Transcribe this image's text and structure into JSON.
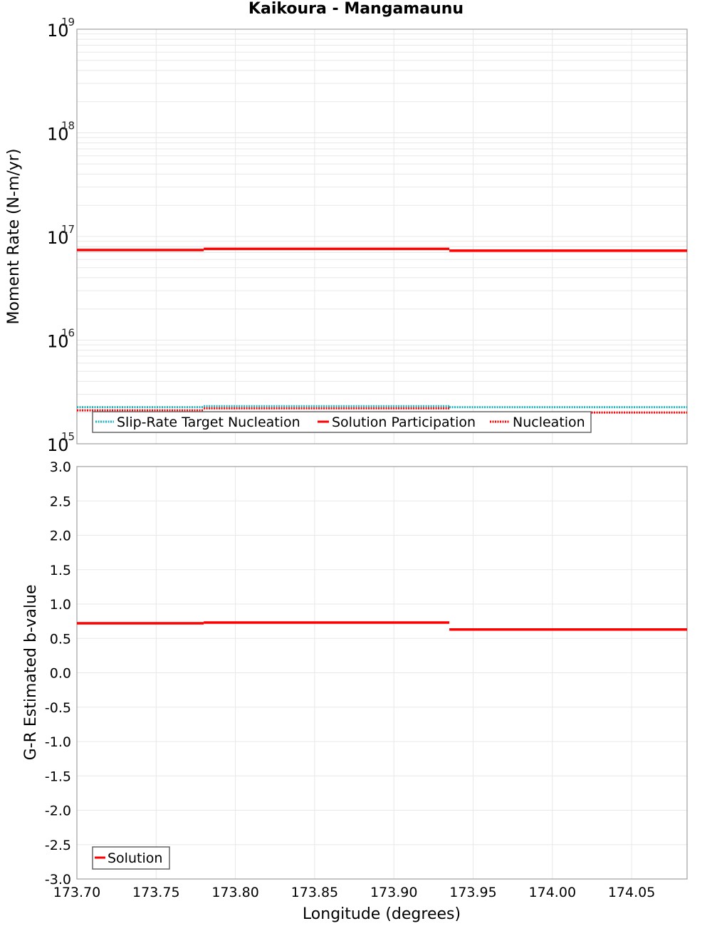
{
  "title": "Kaikoura - Mangamaunu",
  "colors": {
    "solution": "#ff0000",
    "target": "#1fb5c0",
    "nucleation": "#ff0000",
    "grid": "#e8e8e8",
    "frame": "#a0a0a0"
  },
  "chart_data": [
    {
      "type": "line",
      "title": "Kaikoura - Mangamaunu",
      "xlabel": "Longitude (degrees)",
      "ylabel": "Moment Rate (N-m/yr)",
      "yscale": "log",
      "ylim": [
        1000000000000000.0,
        1e+19
      ],
      "xlim": [
        173.7,
        174.085
      ],
      "ytick_labels": [
        "10^15",
        "10^16",
        "10^17",
        "10^18",
        "10^19"
      ],
      "grid": true,
      "legend_position": "lower left",
      "series": [
        {
          "name": "Slip-Rate Target Nucleation",
          "style": "dotted",
          "color": "#1fb5c0",
          "segments": [
            {
              "x": [
                173.7,
                173.78
              ],
              "y": 2200000000000000.0
            },
            {
              "x": [
                173.78,
                173.935
              ],
              "y": 2250000000000000.0
            },
            {
              "x": [
                173.935,
                174.085
              ],
              "y": 2200000000000000.0
            }
          ]
        },
        {
          "name": "Solution Participation",
          "style": "solid",
          "color": "#ff0000",
          "segments": [
            {
              "x": [
                173.7,
                173.78
              ],
              "y": 7.4e+16
            },
            {
              "x": [
                173.78,
                173.935
              ],
              "y": 7.6e+16
            },
            {
              "x": [
                173.935,
                174.085
              ],
              "y": 7.3e+16
            }
          ]
        },
        {
          "name": "Nucleation",
          "style": "dotted",
          "color": "#ff0000",
          "segments": [
            {
              "x": [
                173.7,
                173.78
              ],
              "y": 2150000000000000.0
            },
            {
              "x": [
                173.78,
                173.935
              ],
              "y": 2250000000000000.0
            },
            {
              "x": [
                173.935,
                174.085
              ],
              "y": 2050000000000000.0
            }
          ]
        }
      ]
    },
    {
      "type": "line",
      "xlabel": "Longitude (degrees)",
      "ylabel": "G-R Estimated b-value",
      "ylim": [
        -3.0,
        3.0
      ],
      "xlim": [
        173.7,
        174.085
      ],
      "ytick_labels": [
        "3.0",
        "2.5",
        "2.0",
        "1.5",
        "1.0",
        "0.5",
        "0.0",
        "-0.5",
        "-1.0",
        "-1.5",
        "-2.0",
        "-2.5",
        "-3.0"
      ],
      "xtick_labels": [
        "173.70",
        "173.75",
        "173.80",
        "173.85",
        "173.90",
        "173.95",
        "174.00",
        "174.05"
      ],
      "grid": true,
      "legend_position": "lower left",
      "series": [
        {
          "name": "Solution",
          "style": "solid",
          "color": "#ff0000",
          "segments": [
            {
              "x": [
                173.7,
                173.78
              ],
              "y": 0.72
            },
            {
              "x": [
                173.78,
                173.935
              ],
              "y": 0.73
            },
            {
              "x": [
                173.935,
                174.085
              ],
              "y": 0.63
            }
          ]
        }
      ]
    }
  ],
  "top_plot": {
    "ylabel": "Moment Rate (N-m/yr)",
    "yticks": [
      {
        "base": "10",
        "exp": "19"
      },
      {
        "base": "10",
        "exp": "18"
      },
      {
        "base": "10",
        "exp": "17"
      },
      {
        "base": "10",
        "exp": "16"
      },
      {
        "base": "10",
        "exp": "15"
      }
    ],
    "legend": [
      {
        "label": "Slip-Rate Target Nucleation"
      },
      {
        "label": "Solution Participation"
      },
      {
        "label": "Nucleation"
      }
    ]
  },
  "bottom_plot": {
    "ylabel": "G-R Estimated b-value",
    "yticks": [
      "3.0",
      "2.5",
      "2.0",
      "1.5",
      "1.0",
      "0.5",
      "0.0",
      "-0.5",
      "-1.0",
      "-1.5",
      "-2.0",
      "-2.5",
      "-3.0"
    ],
    "xticks": [
      "173.70",
      "173.75",
      "173.80",
      "173.85",
      "173.90",
      "173.95",
      "174.00",
      "174.05"
    ],
    "xlabel": "Longitude (degrees)",
    "legend": [
      {
        "label": "Solution"
      }
    ]
  }
}
